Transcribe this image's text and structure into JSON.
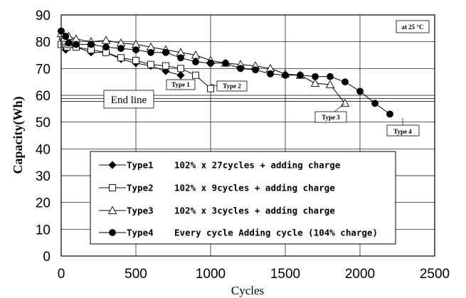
{
  "chart_data": {
    "type": "line",
    "title": "",
    "xlabel": "Cycles",
    "ylabel": "Capacity(Wh)",
    "xlim": [
      0,
      2500
    ],
    "ylim": [
      0,
      90
    ],
    "x_ticks": [
      "0",
      "500",
      "1000",
      "1500",
      "2000",
      "2500"
    ],
    "y_ticks": [
      "0",
      "10",
      "20",
      "30",
      "40",
      "50",
      "60",
      "70",
      "80",
      "90"
    ],
    "grid": "major",
    "temperature_note": "at 25 °C",
    "end_line": {
      "label": "End line",
      "y": 58
    },
    "series": [
      {
        "name": "Type1",
        "marker": "filled-diamond",
        "legend_text": "102% x 27cycles + adding charge",
        "callout": "Type 1",
        "x": [
          0,
          10,
          20,
          30,
          40,
          50,
          100,
          200,
          300,
          400,
          500,
          600,
          700,
          800
        ],
        "y": [
          84,
          81,
          80,
          77,
          79,
          80,
          78,
          76,
          76,
          73.5,
          72,
          71,
          69,
          67.5
        ]
      },
      {
        "name": "Type2",
        "marker": "open-square",
        "legend_text": "102% x 9cycles + adding charge",
        "callout": "Type 2",
        "x": [
          0,
          10,
          20,
          30,
          40,
          50,
          100,
          200,
          300,
          400,
          500,
          600,
          700,
          800,
          900,
          1000
        ],
        "y": [
          79,
          82,
          80,
          79,
          78,
          79,
          78,
          77,
          76,
          74,
          73,
          71.5,
          71,
          70,
          67.5,
          62.5
        ]
      },
      {
        "name": "Type3",
        "marker": "open-triangle",
        "legend_text": "102% x 3cycles + adding charge",
        "callout": "Type 3",
        "x": [
          0,
          50,
          100,
          200,
          300,
          400,
          500,
          600,
          700,
          800,
          900,
          1000,
          1100,
          1200,
          1300,
          1400,
          1500,
          1600,
          1700,
          1800,
          1900
        ],
        "y": [
          83,
          82,
          81,
          80,
          80.5,
          79.5,
          79,
          78,
          77,
          76,
          75,
          73,
          72,
          71.5,
          71,
          70,
          68,
          67.5,
          64.5,
          64,
          57
        ]
      },
      {
        "name": "Type4",
        "marker": "filled-circle",
        "legend_text": "Every cycle Adding cycle (104% charge)",
        "callout": "Type 4",
        "x": [
          0,
          30,
          50,
          100,
          200,
          300,
          400,
          500,
          600,
          700,
          800,
          900,
          1000,
          1100,
          1200,
          1300,
          1400,
          1500,
          1600,
          1700,
          1800,
          1900,
          2000,
          2100,
          2200
        ],
        "y": [
          84,
          82,
          79.5,
          79,
          79,
          78,
          77.5,
          77,
          76,
          76,
          74,
          72.5,
          72,
          72,
          70,
          69.5,
          68,
          67.5,
          67.5,
          67,
          67,
          65,
          61.5,
          57,
          53
        ]
      }
    ]
  }
}
